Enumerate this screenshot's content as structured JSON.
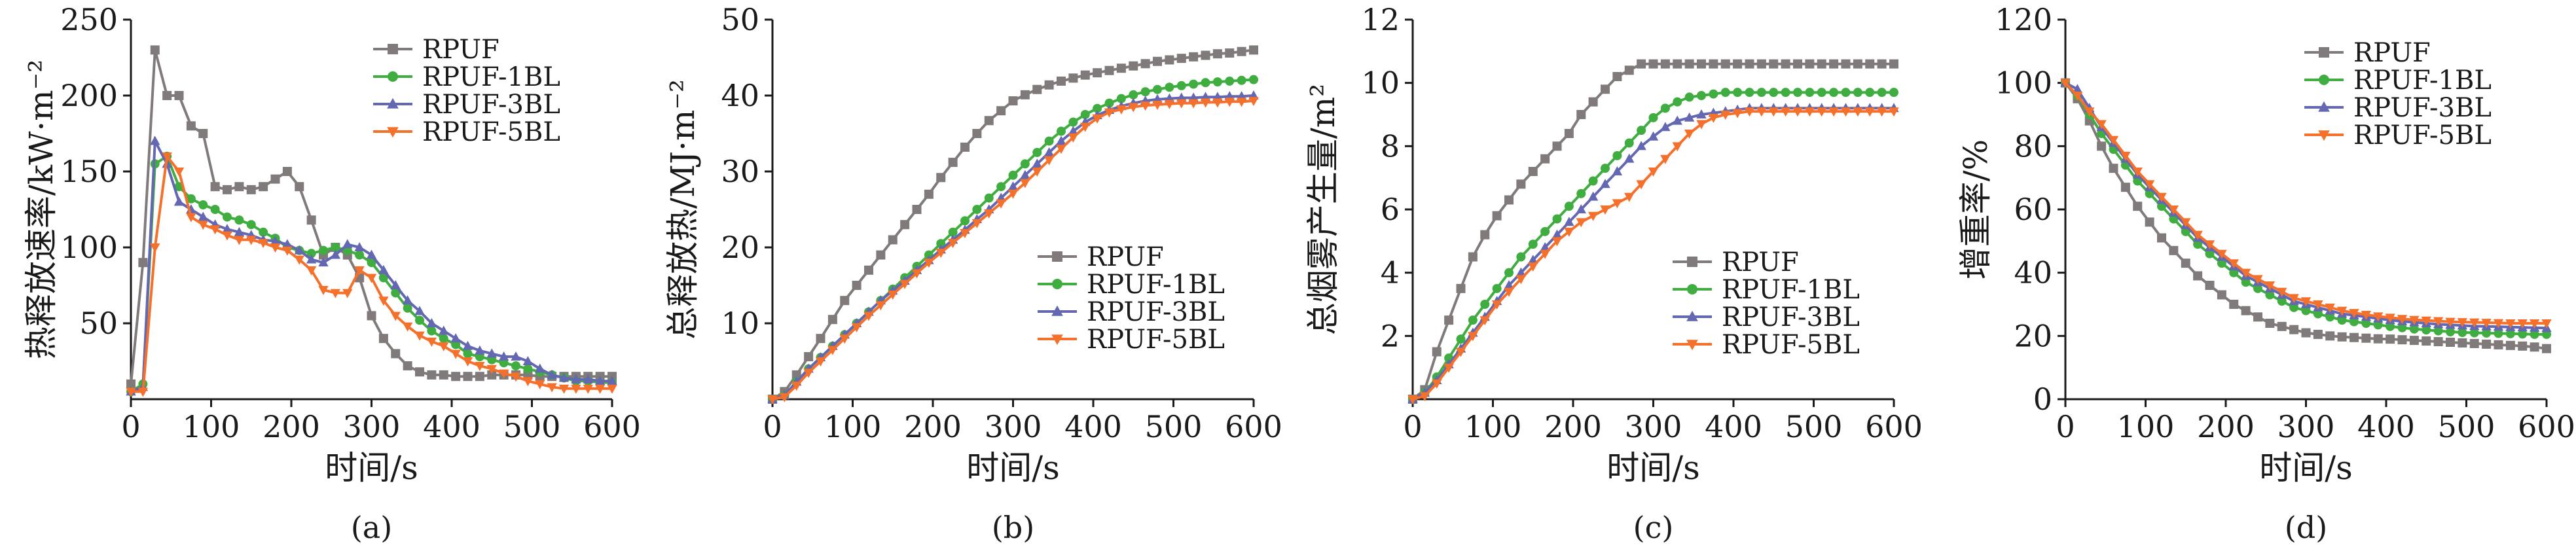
{
  "legend": [
    "RPUF",
    "RPUF-1BL",
    "RPUF-3BL",
    "RPUF-5BL"
  ],
  "colors": {
    "RPUF": "#807a7a",
    "RPUF-1BL": "#3fad3f",
    "RPUF-3BL": "#6467b2",
    "RPUF-5BL": "#f5702b"
  },
  "markers": {
    "RPUF": "square",
    "RPUF-1BL": "circle",
    "RPUF-3BL": "triangle-up",
    "RPUF-5BL": "triangle-down"
  },
  "chart_data": [
    {
      "type": "line",
      "panel": "(a)",
      "xlabel": "时间/s",
      "ylabel": "热释放速率/kW·m⁻²",
      "xlim": [
        0,
        600
      ],
      "ylim": [
        0,
        250
      ],
      "xticks": [
        "0",
        "100",
        "200",
        "300",
        "400",
        "500",
        "600"
      ],
      "yticks": [
        "50",
        "100",
        "150",
        "200",
        "250"
      ],
      "legend_position": "top-right",
      "x": [
        0,
        15,
        30,
        45,
        60,
        75,
        90,
        105,
        120,
        135,
        150,
        165,
        180,
        195,
        210,
        225,
        240,
        255,
        270,
        285,
        300,
        315,
        330,
        345,
        360,
        375,
        390,
        405,
        420,
        435,
        450,
        465,
        480,
        495,
        510,
        525,
        540,
        555,
        570,
        585,
        600
      ],
      "series": [
        {
          "name": "RPUF",
          "values": [
            10,
            90,
            230,
            200,
            200,
            180,
            175,
            140,
            138,
            140,
            138,
            140,
            145,
            150,
            140,
            118,
            95,
            100,
            95,
            80,
            55,
            40,
            30,
            22,
            18,
            16,
            16,
            15,
            15,
            15,
            16,
            16,
            16,
            16,
            15,
            15,
            15,
            15,
            15,
            15,
            15
          ]
        },
        {
          "name": "RPUF-1BL",
          "values": [
            5,
            10,
            155,
            160,
            140,
            132,
            128,
            125,
            120,
            118,
            115,
            110,
            106,
            100,
            98,
            96,
            98,
            100,
            98,
            95,
            90,
            80,
            70,
            60,
            52,
            45,
            40,
            36,
            30,
            28,
            26,
            24,
            22,
            20,
            18,
            16,
            14,
            12,
            12,
            11,
            11
          ]
        },
        {
          "name": "RPUF-3BL",
          "values": [
            5,
            8,
            170,
            155,
            130,
            125,
            120,
            115,
            112,
            110,
            108,
            105,
            104,
            102,
            98,
            92,
            90,
            95,
            102,
            100,
            95,
            85,
            75,
            65,
            58,
            50,
            45,
            40,
            35,
            32,
            30,
            28,
            28,
            25,
            20,
            16,
            14,
            13,
            13,
            12,
            12
          ]
        },
        {
          "name": "RPUF-5BL",
          "values": [
            5,
            5,
            100,
            160,
            150,
            120,
            115,
            112,
            108,
            105,
            105,
            103,
            100,
            98,
            92,
            85,
            72,
            70,
            70,
            85,
            80,
            65,
            55,
            48,
            42,
            38,
            35,
            30,
            25,
            22,
            20,
            17,
            15,
            12,
            10,
            8,
            7,
            7,
            7,
            7,
            7
          ]
        }
      ]
    },
    {
      "type": "line",
      "panel": "(b)",
      "xlabel": "时间/s",
      "ylabel": "总释放热/MJ·m⁻²",
      "xlim": [
        0,
        600
      ],
      "ylim": [
        0,
        50
      ],
      "xticks": [
        "0",
        "100",
        "200",
        "300",
        "400",
        "500",
        "600"
      ],
      "yticks": [
        "10",
        "20",
        "30",
        "40",
        "50"
      ],
      "legend_position": "bottom-right",
      "x": [
        0,
        15,
        30,
        45,
        60,
        75,
        90,
        105,
        120,
        135,
        150,
        165,
        180,
        195,
        210,
        225,
        240,
        255,
        270,
        285,
        300,
        315,
        330,
        345,
        360,
        375,
        390,
        405,
        420,
        435,
        450,
        465,
        480,
        495,
        510,
        525,
        540,
        555,
        570,
        585,
        600
      ],
      "series": [
        {
          "name": "RPUF",
          "values": [
            0,
            1.0,
            3.2,
            5.6,
            8.0,
            10.5,
            13.0,
            15.0,
            17.0,
            19.0,
            21.0,
            23.0,
            25.0,
            27.0,
            29.2,
            31.2,
            33.2,
            35.0,
            36.7,
            38.0,
            39.3,
            40.1,
            40.8,
            41.4,
            41.9,
            42.3,
            42.7,
            43.0,
            43.3,
            43.6,
            43.9,
            44.2,
            44.5,
            44.7,
            44.9,
            45.1,
            45.3,
            45.5,
            45.6,
            45.8,
            46.0
          ]
        },
        {
          "name": "RPUF-1BL",
          "values": [
            0,
            0.5,
            2.3,
            4.0,
            5.5,
            7.0,
            8.5,
            10.0,
            11.5,
            13.0,
            14.5,
            16.0,
            17.5,
            19.0,
            20.5,
            22.0,
            23.5,
            25.0,
            26.5,
            28.0,
            29.5,
            31.0,
            32.5,
            34.0,
            35.3,
            36.5,
            37.5,
            38.3,
            39.0,
            39.6,
            40.1,
            40.5,
            40.8,
            41.1,
            41.3,
            41.5,
            41.7,
            41.8,
            41.9,
            42.0,
            42.1
          ]
        },
        {
          "name": "RPUF-3BL",
          "values": [
            0,
            0.5,
            2.3,
            4.0,
            5.5,
            7.0,
            8.5,
            10.0,
            11.5,
            13.0,
            14.3,
            15.6,
            17.0,
            18.3,
            19.7,
            21.0,
            22.3,
            23.7,
            25.0,
            26.5,
            28.0,
            29.5,
            31.0,
            32.5,
            34.0,
            35.3,
            36.5,
            37.4,
            38.1,
            38.6,
            39.0,
            39.3,
            39.5,
            39.6,
            39.7,
            39.7,
            39.8,
            39.8,
            39.9,
            39.9,
            40.0
          ]
        },
        {
          "name": "RPUF-5BL",
          "values": [
            0,
            0.3,
            1.8,
            3.5,
            5.0,
            6.5,
            8.0,
            9.5,
            11.0,
            12.4,
            13.8,
            15.2,
            16.6,
            18.0,
            19.3,
            20.6,
            21.9,
            23.2,
            24.5,
            25.8,
            27.1,
            28.5,
            30.0,
            31.5,
            33.0,
            34.5,
            35.9,
            37.0,
            37.8,
            38.2,
            38.5,
            38.7,
            38.8,
            38.9,
            39.0,
            39.0,
            39.1,
            39.1,
            39.2,
            39.2,
            39.3
          ]
        }
      ]
    },
    {
      "type": "line",
      "panel": "(c)",
      "xlabel": "时间/s",
      "ylabel": "总烟雾产生量/m²",
      "xlim": [
        0,
        600
      ],
      "ylim": [
        0,
        12
      ],
      "xticks": [
        "0",
        "100",
        "200",
        "300",
        "400",
        "500",
        "600"
      ],
      "yticks": [
        "2",
        "4",
        "6",
        "8",
        "10",
        "12"
      ],
      "legend_position": "bottom-right",
      "x": [
        0,
        15,
        30,
        45,
        60,
        75,
        90,
        105,
        120,
        135,
        150,
        165,
        180,
        195,
        210,
        225,
        240,
        255,
        270,
        285,
        300,
        315,
        330,
        345,
        360,
        375,
        390,
        405,
        420,
        435,
        450,
        465,
        480,
        495,
        510,
        525,
        540,
        555,
        570,
        585,
        600
      ],
      "series": [
        {
          "name": "RPUF",
          "values": [
            0,
            0.3,
            1.5,
            2.5,
            3.5,
            4.5,
            5.2,
            5.8,
            6.3,
            6.8,
            7.2,
            7.6,
            8.0,
            8.4,
            9.0,
            9.4,
            9.8,
            10.2,
            10.4,
            10.6,
            10.6,
            10.6,
            10.6,
            10.6,
            10.6,
            10.6,
            10.6,
            10.6,
            10.6,
            10.6,
            10.6,
            10.6,
            10.6,
            10.6,
            10.6,
            10.6,
            10.6,
            10.6,
            10.6,
            10.6,
            10.6
          ]
        },
        {
          "name": "RPUF-1BL",
          "values": [
            0,
            0.2,
            0.7,
            1.3,
            1.9,
            2.5,
            3.0,
            3.5,
            4.0,
            4.5,
            4.9,
            5.3,
            5.7,
            6.1,
            6.5,
            6.9,
            7.3,
            7.7,
            8.1,
            8.5,
            8.9,
            9.2,
            9.4,
            9.55,
            9.6,
            9.65,
            9.7,
            9.7,
            9.7,
            9.7,
            9.7,
            9.7,
            9.7,
            9.7,
            9.7,
            9.7,
            9.7,
            9.7,
            9.7,
            9.7,
            9.7
          ]
        },
        {
          "name": "RPUF-3BL",
          "values": [
            0,
            0.2,
            0.6,
            1.1,
            1.6,
            2.1,
            2.6,
            3.1,
            3.6,
            4.0,
            4.4,
            4.8,
            5.2,
            5.6,
            6.0,
            6.4,
            6.8,
            7.2,
            7.6,
            8.0,
            8.3,
            8.6,
            8.8,
            8.9,
            9.0,
            9.05,
            9.1,
            9.15,
            9.2,
            9.2,
            9.2,
            9.2,
            9.2,
            9.2,
            9.2,
            9.2,
            9.2,
            9.2,
            9.2,
            9.2,
            9.2
          ]
        },
        {
          "name": "RPUF-5BL",
          "values": [
            0,
            0.1,
            0.5,
            1.0,
            1.5,
            2.0,
            2.5,
            3.0,
            3.4,
            3.8,
            4.2,
            4.6,
            5.0,
            5.3,
            5.6,
            5.8,
            6.0,
            6.2,
            6.4,
            6.8,
            7.2,
            7.6,
            8.0,
            8.4,
            8.7,
            8.9,
            9.0,
            9.05,
            9.1,
            9.1,
            9.1,
            9.1,
            9.1,
            9.1,
            9.1,
            9.1,
            9.1,
            9.1,
            9.1,
            9.1,
            9.1
          ]
        }
      ]
    },
    {
      "type": "line",
      "panel": "(d)",
      "xlabel": "时间/s",
      "ylabel": "增重率/%",
      "xlim": [
        0,
        600
      ],
      "ylim": [
        0,
        120
      ],
      "xticks": [
        "0",
        "100",
        "200",
        "300",
        "400",
        "500",
        "600"
      ],
      "yticks": [
        "0",
        "20",
        "40",
        "60",
        "80",
        "100",
        "120"
      ],
      "legend_position": "top-right",
      "x": [
        0,
        15,
        30,
        45,
        60,
        75,
        90,
        105,
        120,
        135,
        150,
        165,
        180,
        195,
        210,
        225,
        240,
        255,
        270,
        285,
        300,
        315,
        330,
        345,
        360,
        375,
        390,
        405,
        420,
        435,
        450,
        465,
        480,
        495,
        510,
        525,
        540,
        555,
        570,
        585,
        600
      ],
      "series": [
        {
          "name": "RPUF",
          "values": [
            100,
            95,
            88,
            80,
            73,
            67,
            61,
            56,
            51,
            47,
            43,
            39,
            36,
            33,
            30,
            28,
            26,
            24,
            23,
            22,
            21,
            20.5,
            20,
            19.7,
            19.5,
            19.3,
            19.1,
            19,
            18.8,
            18.6,
            18.4,
            18.2,
            18,
            17.8,
            17.6,
            17.4,
            17.2,
            17,
            16.8,
            16.5,
            16
          ]
        },
        {
          "name": "RPUF-1BL",
          "values": [
            100,
            96,
            90,
            84,
            79,
            74,
            69,
            65,
            61,
            57,
            53,
            49,
            46,
            43,
            40,
            37,
            35,
            33,
            31,
            29,
            28,
            27,
            26,
            25,
            24.5,
            24,
            23.5,
            23,
            22.6,
            22.2,
            21.9,
            21.6,
            21.3,
            21.1,
            21,
            20.9,
            20.8,
            20.7,
            20.6,
            20.5,
            20.5
          ]
        },
        {
          "name": "RPUF-3BL",
          "values": [
            100,
            98,
            92,
            86,
            81,
            76,
            71,
            67,
            63,
            59,
            55,
            51,
            48,
            45,
            42,
            39,
            37,
            35,
            33,
            31,
            30,
            29,
            28,
            27,
            26.5,
            26,
            25.5,
            25,
            24.6,
            24.3,
            24,
            23.7,
            23.5,
            23.3,
            23.1,
            23,
            22.9,
            22.8,
            22.7,
            22.6,
            22.5
          ]
        },
        {
          "name": "RPUF-5BL",
          "values": [
            100,
            96,
            91,
            87,
            82,
            77,
            72,
            68,
            64,
            60,
            56,
            52,
            49,
            46,
            43,
            40,
            38,
            36,
            34,
            32,
            31,
            30,
            29,
            28,
            27.3,
            26.7,
            26.2,
            25.8,
            25.4,
            25.1,
            24.9,
            24.7,
            24.5,
            24.4,
            24.3,
            24.2,
            24.1,
            24,
            24,
            24,
            24
          ]
        }
      ]
    }
  ]
}
